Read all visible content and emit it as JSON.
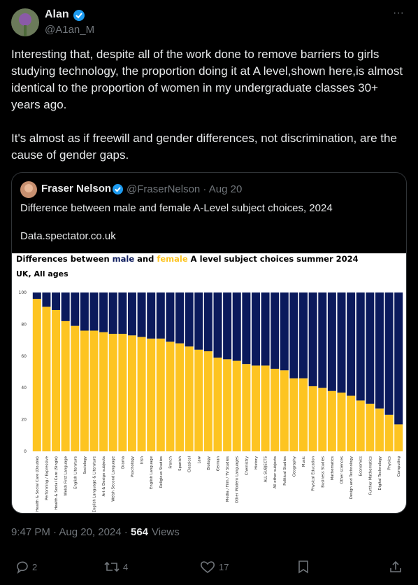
{
  "tweet": {
    "author": "Alan",
    "handle": "@A1an_M",
    "more": "···",
    "paragraphs": [
      "Interesting that, despite all of the work done to remove barriers to girls studying technology, the proportion doing it at A level,shown here,is almost identical to the proportion of women in my undergraduate classes 30+ years ago.",
      "It's almost as if freewill and gender differences, not discrimination, are the cause of gender gaps."
    ],
    "quote": {
      "author": "Fraser Nelson",
      "handle_date": "@FraserNelson · Aug 20",
      "text": "Difference between male and female A-Level subject choices, 2024",
      "link": "Data.spectator.co.uk"
    },
    "timestamp": "9:47 PM · Aug 20, 2024 ·",
    "views": "564",
    "views_label": "Views",
    "replies": 2,
    "reposts": 4,
    "likes": 17
  },
  "chart_data": {
    "type": "stacked_bar",
    "title_parts": [
      "Differences between ",
      " and ",
      " A level subject choices summer 2024"
    ],
    "subtitle": "UK, All ages",
    "categories": [
      "Health & Social Care (Double)",
      "Performing / Expressive",
      "Health & Social Care (Single)",
      "Welsh First Language",
      "English Literature",
      "Sociology",
      "English Language & Literature",
      "Art & Design subjects",
      "Welsh Second Language",
      "Drama",
      "Psychology",
      "Irish",
      "English Language",
      "Religious Studies",
      "French",
      "Spanish",
      "Classical",
      "Law",
      "Biology",
      "German",
      "Media / Film / TV Studies",
      "Other Modern Languages",
      "Chemistry",
      "History",
      "ALL SUBJECTS",
      "All other subjects",
      "Political Studies",
      "Geography",
      "Music",
      "Physical Education",
      "Business Studies",
      "Mathematics",
      "Other sciences",
      "Design and Technology",
      "Economics",
      "Further Mathematics",
      "Digital Technology",
      "Physics",
      "Computing"
    ],
    "series": [
      {
        "name": "female",
        "color": "#fdc421",
        "values": [
          96,
          91,
          89,
          82,
          79,
          76,
          76,
          75,
          74,
          74,
          73,
          72,
          71,
          71,
          69,
          68,
          66,
          64,
          63,
          59,
          58,
          57,
          55,
          54,
          54,
          52,
          51,
          46,
          46,
          41,
          40,
          38,
          37,
          35,
          32,
          30,
          27,
          23,
          17
        ]
      },
      {
        "name": "male",
        "color": "#0b1a5c",
        "values": [
          4,
          9,
          11,
          18,
          21,
          24,
          24,
          25,
          26,
          26,
          27,
          28,
          29,
          29,
          31,
          32,
          34,
          36,
          37,
          41,
          42,
          43,
          45,
          46,
          46,
          48,
          49,
          54,
          54,
          59,
          60,
          62,
          63,
          65,
          68,
          70,
          73,
          77,
          83
        ]
      }
    ],
    "ylim": [
      0,
      100
    ],
    "yticks": [
      0,
      20,
      40,
      60,
      80,
      100
    ],
    "grid": false
  }
}
